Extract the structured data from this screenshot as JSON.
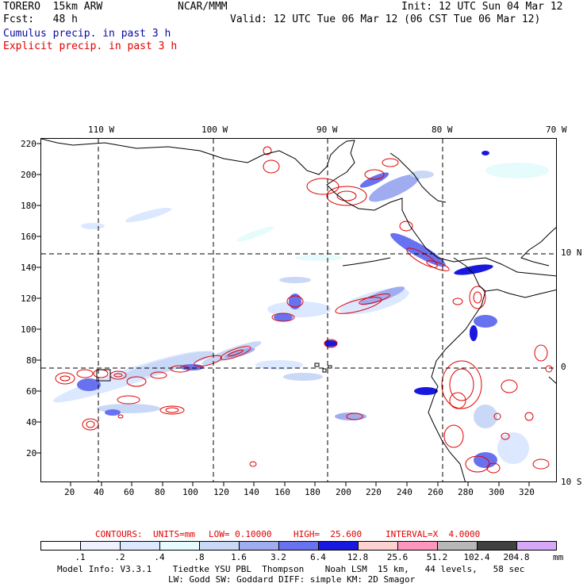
{
  "header": {
    "model": "TORERO  15km ARW",
    "org": "NCAR/MMM",
    "init": "Init: 12 UTC Sun 04 Mar 12",
    "fcst": "Fcst:   48 h",
    "valid": "Valid: 12 UTC Tue 06 Mar 12 (06 CST Tue 06 Mar 12)",
    "cumulus": "Cumulus precip. in past 3 h",
    "explicit": "Explicit precip. in past 3 h"
  },
  "colors": {
    "cumulus_text": "#0a0aa0",
    "explicit_text": "#e00000",
    "contour": "#e00000",
    "coast": "#000000"
  },
  "axes": {
    "top_lon_labels": [
      "110 W",
      "100 W",
      "90 W",
      "80 W",
      "70 W"
    ],
    "right_lat_labels": [
      "10 N",
      "0",
      "10 S"
    ],
    "left_ticks": [
      "220",
      "200",
      "180",
      "160",
      "140",
      "120",
      "100",
      "80",
      "60",
      "40",
      "20"
    ],
    "bottom_ticks": [
      "20",
      "40",
      "60",
      "80",
      "100",
      "120",
      "140",
      "160",
      "180",
      "200",
      "220",
      "240",
      "260",
      "280",
      "300",
      "320"
    ]
  },
  "contours_info": {
    "label": "CONTOURS:",
    "units": "UNITS=mm",
    "low": "LOW= 0.10000",
    "high": "HIGH=  25.600",
    "interval": "INTERVAL=X  4.0000"
  },
  "legend": {
    "unit": "mm",
    "labels": [
      ".1",
      ".2",
      ".4",
      ".8",
      "1.6",
      "3.2",
      "6.4",
      "12.8",
      "25.6",
      "51.2",
      "102.4",
      "204.8"
    ],
    "colors": [
      "#ffffff",
      "#eef2ff",
      "#dbe8ff",
      "#e6fbfb",
      "#c8d8f6",
      "#a0acf0",
      "#6872f0",
      "#1818e0",
      "#ffd2d2",
      "#ff96c0",
      "#b8b8b8",
      "#404040",
      "#d8a8f8"
    ]
  },
  "footer": {
    "line1": "Model Info: V3.3.1    Tiedtke YSU PBL  Thompson    Noah LSM  15 km,   44 levels,   58 sec",
    "line2": "LW: Godd SW: Goddard DIFF: simple KM: 2D Smagor"
  }
}
